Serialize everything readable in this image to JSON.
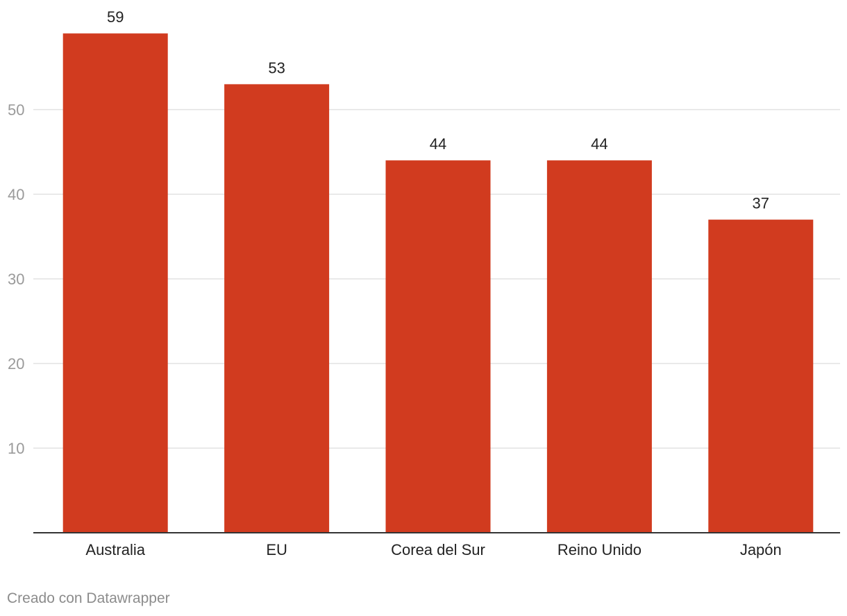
{
  "chart_data": {
    "type": "bar",
    "categories": [
      "Australia",
      "EU",
      "Corea del Sur",
      "Reino Unido",
      "Japón"
    ],
    "values": [
      59,
      53,
      44,
      44,
      37
    ],
    "value_labels": [
      "59",
      "53",
      "44",
      "44",
      "37"
    ],
    "y_ticks": [
      10,
      20,
      30,
      40,
      50
    ],
    "ylim": [
      0,
      60
    ],
    "grid": true,
    "bar_color": "#d13b1f",
    "grid_color": "#e2e2e2",
    "tick_label_color": "#9a9a9a",
    "axis_color": "#333333"
  },
  "footer": {
    "credit": "Creado con Datawrapper"
  }
}
